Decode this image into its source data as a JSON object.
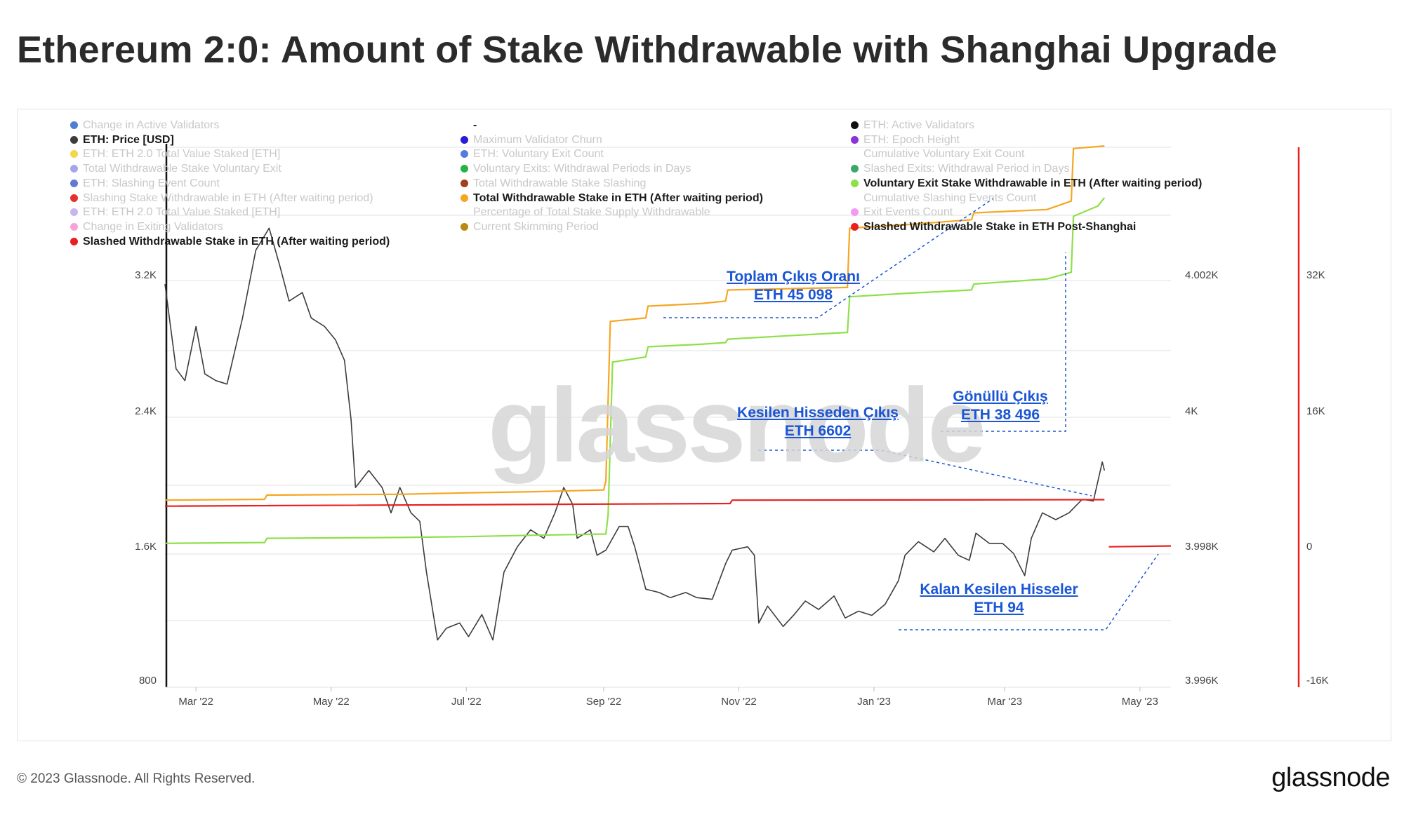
{
  "header": {
    "title": "Ethereum 2:0: Amount of Stake Withdrawable with Shanghai Upgrade"
  },
  "legend": {
    "col1": [
      {
        "label": "Change in Active Validators",
        "color": "#4e7fd0",
        "active": false
      },
      {
        "label": "ETH: Price [USD]",
        "color": "#3c3c3c",
        "active": true
      },
      {
        "label": "ETH: ETH 2.0 Total Value Staked [ETH]",
        "color": "#f1d749",
        "active": false
      },
      {
        "label": "Total Withdrawable Stake Voluntary Exit",
        "color": "#a5a6e8",
        "active": false
      },
      {
        "label": "ETH: Slashing Event Count",
        "color": "#6279d8",
        "active": false
      },
      {
        "label": "Slashing Stake Withdrawable in ETH (After waiting period)",
        "color": "#e63030",
        "active": false
      },
      {
        "label": "ETH: ETH 2.0 Total Value Staked [ETH]",
        "color": "#c7b6ea",
        "active": false
      },
      {
        "label": "Change in Exiting Validators",
        "color": "#f4a6d8",
        "active": false
      },
      {
        "label": "Slashed Withdrawable Stake in ETH (After waiting period)",
        "color": "#e82020",
        "active": true
      }
    ],
    "col2": [
      {
        "label": "-",
        "color": "",
        "active": true
      },
      {
        "label": "Maximum Validator Churn",
        "color": "#2a1bd8",
        "active": false
      },
      {
        "label": "ETH: Voluntary Exit Count",
        "color": "#5a79e0",
        "active": false
      },
      {
        "label": "Voluntary Exits: Withdrawal Periods in Days",
        "color": "#24b347",
        "active": false
      },
      {
        "label": "Total Withdrawable Stake Slashing",
        "color": "#a0401d",
        "active": false
      },
      {
        "label": "Total Withdrawable Stake in ETH (After waiting period)",
        "color": "#f5a623",
        "active": true
      },
      {
        "label": "Percentage of Total Stake Supply Withdrawable",
        "color": "",
        "active": false
      },
      {
        "label": "Current Skimming Period",
        "color": "#b88a10",
        "active": false
      }
    ],
    "col3": [
      {
        "label": "ETH: Active Validators",
        "color": "#111111",
        "active": false
      },
      {
        "label": "ETH: Epoch Height",
        "color": "#8a33d6",
        "active": false
      },
      {
        "label": "Cumulative Voluntary Exit Count",
        "color": "",
        "active": false
      },
      {
        "label": "Slashed Exits: Withdrawal Period in Days",
        "color": "#3aa86a",
        "active": false
      },
      {
        "label": "Voluntary Exit Stake Withdrawable in ETH (After waiting period)",
        "color": "#8ee04a",
        "active": true
      },
      {
        "label": "Cumulative Slashing Events Count",
        "color": "",
        "active": false
      },
      {
        "label": "Exit Events Count",
        "color": "#f29af0",
        "active": false
      },
      {
        "label": "Slashed Withdrawable Stake in ETH Post-Shanghai",
        "color": "#e82020",
        "active": true
      }
    ]
  },
  "annotations": [
    {
      "line1": "Toplam Çıkış Oranı",
      "line2": "ETH 45 098"
    },
    {
      "line1": "Gönüllü Çıkış",
      "line2": "ETH 38 496"
    },
    {
      "line1": "Kesilen Hisseden Çıkış",
      "line2": "ETH 6602"
    },
    {
      "line1": "Kalan Kesilen Hisseler",
      "line2": "ETH 94"
    }
  ],
  "watermark": "glassnode",
  "footer": {
    "copyright": "© 2023 Glassnode. All Rights Reserved.",
    "brand": "glassnode"
  },
  "chart_data": {
    "type": "line",
    "title": "Ethereum 2:0: Amount of Stake Withdrawable with Shanghai Upgrade",
    "x_ticks": [
      "Mar '22",
      "May '22",
      "Jul '22",
      "Sep '22",
      "Nov '22",
      "Jan '23",
      "Mar '23",
      "May '23"
    ],
    "x_range": [
      "2022-02-15",
      "2023-05-15"
    ],
    "axes": {
      "price_left": {
        "ticks": [
          "800",
          "1.6K",
          "2.4K",
          "3.2K"
        ],
        "range": [
          800,
          3220
        ]
      },
      "stake_right": {
        "ticks": [
          "3.996K",
          "3.998K",
          "4K",
          "4.002K"
        ],
        "range": [
          3996,
          4002
        ]
      },
      "count_right": {
        "ticks": [
          "-16K",
          "0",
          "16K",
          "32K"
        ],
        "range": [
          -16000,
          32000
        ]
      }
    },
    "grid": true,
    "legend_position": "top",
    "series": [
      {
        "name": "ETH: Price [USD]",
        "color": "#3c3c3c",
        "axis": "price_left",
        "points": [
          [
            "2022-02-15",
            3150
          ],
          [
            "2022-02-20",
            2650
          ],
          [
            "2022-02-24",
            2580
          ],
          [
            "2022-03-01",
            2900
          ],
          [
            "2022-03-05",
            2620
          ],
          [
            "2022-03-10",
            2580
          ],
          [
            "2022-03-15",
            2560
          ],
          [
            "2022-03-22",
            2950
          ],
          [
            "2022-03-28",
            3350
          ],
          [
            "2022-04-03",
            3480
          ],
          [
            "2022-04-08",
            3250
          ],
          [
            "2022-04-12",
            3050
          ],
          [
            "2022-04-18",
            3100
          ],
          [
            "2022-04-22",
            2950
          ],
          [
            "2022-04-28",
            2900
          ],
          [
            "2022-05-03",
            2820
          ],
          [
            "2022-05-07",
            2700
          ],
          [
            "2022-05-10",
            2350
          ],
          [
            "2022-05-12",
            1950
          ],
          [
            "2022-05-18",
            2050
          ],
          [
            "2022-05-24",
            1950
          ],
          [
            "2022-05-28",
            1800
          ],
          [
            "2022-06-01",
            1950
          ],
          [
            "2022-06-06",
            1800
          ],
          [
            "2022-06-10",
            1750
          ],
          [
            "2022-06-13",
            1450
          ],
          [
            "2022-06-18",
            1050
          ],
          [
            "2022-06-22",
            1120
          ],
          [
            "2022-06-28",
            1150
          ],
          [
            "2022-07-02",
            1070
          ],
          [
            "2022-07-08",
            1200
          ],
          [
            "2022-07-13",
            1050
          ],
          [
            "2022-07-18",
            1450
          ],
          [
            "2022-07-24",
            1600
          ],
          [
            "2022-07-30",
            1700
          ],
          [
            "2022-08-05",
            1650
          ],
          [
            "2022-08-10",
            1800
          ],
          [
            "2022-08-14",
            1950
          ],
          [
            "2022-08-18",
            1850
          ],
          [
            "2022-08-20",
            1650
          ],
          [
            "2022-08-26",
            1700
          ],
          [
            "2022-08-29",
            1550
          ],
          [
            "2022-09-02",
            1580
          ],
          [
            "2022-09-08",
            1720
          ],
          [
            "2022-09-12",
            1720
          ],
          [
            "2022-09-15",
            1600
          ],
          [
            "2022-09-20",
            1350
          ],
          [
            "2022-09-26",
            1330
          ],
          [
            "2022-10-01",
            1300
          ],
          [
            "2022-10-08",
            1330
          ],
          [
            "2022-10-13",
            1300
          ],
          [
            "2022-10-20",
            1290
          ],
          [
            "2022-10-26",
            1500
          ],
          [
            "2022-10-29",
            1580
          ],
          [
            "2022-11-05",
            1600
          ],
          [
            "2022-11-08",
            1550
          ],
          [
            "2022-11-10",
            1150
          ],
          [
            "2022-11-14",
            1250
          ],
          [
            "2022-11-21",
            1130
          ],
          [
            "2022-11-26",
            1200
          ],
          [
            "2022-12-01",
            1280
          ],
          [
            "2022-12-07",
            1230
          ],
          [
            "2022-12-14",
            1310
          ],
          [
            "2022-12-19",
            1180
          ],
          [
            "2022-12-25",
            1220
          ],
          [
            "2022-12-31",
            1195
          ],
          [
            "2023-01-06",
            1260
          ],
          [
            "2023-01-12",
            1400
          ],
          [
            "2023-01-15",
            1550
          ],
          [
            "2023-01-21",
            1630
          ],
          [
            "2023-01-28",
            1570
          ],
          [
            "2023-02-02",
            1650
          ],
          [
            "2023-02-08",
            1550
          ],
          [
            "2023-02-13",
            1520
          ],
          [
            "2023-02-16",
            1680
          ],
          [
            "2023-02-22",
            1620
          ],
          [
            "2023-02-28",
            1620
          ],
          [
            "2023-03-05",
            1560
          ],
          [
            "2023-03-10",
            1430
          ],
          [
            "2023-03-13",
            1650
          ],
          [
            "2023-03-18",
            1800
          ],
          [
            "2023-03-24",
            1760
          ],
          [
            "2023-03-30",
            1800
          ],
          [
            "2023-04-05",
            1880
          ],
          [
            "2023-04-10",
            1870
          ],
          [
            "2023-04-14",
            2100
          ],
          [
            "2023-04-15",
            2050
          ]
        ]
      },
      {
        "name": "Total Withdrawable Stake in ETH (After waiting period)",
        "color": "#f5a623",
        "axis": "price_left",
        "points": [
          [
            "2022-02-15",
            1875
          ],
          [
            "2022-04-01",
            1880
          ],
          [
            "2022-04-02",
            1905
          ],
          [
            "2022-06-01",
            1910
          ],
          [
            "2022-07-01",
            1918
          ],
          [
            "2022-08-01",
            1925
          ],
          [
            "2022-09-01",
            1935
          ],
          [
            "2022-09-02",
            1990
          ],
          [
            "2022-09-04",
            2930
          ],
          [
            "2022-09-20",
            2950
          ],
          [
            "2022-09-21",
            3020
          ],
          [
            "2022-10-15",
            3035
          ],
          [
            "2022-10-26",
            3050
          ],
          [
            "2022-10-27",
            3115
          ],
          [
            "2022-12-20",
            3130
          ],
          [
            "2022-12-21",
            3480
          ],
          [
            "2023-01-15",
            3500
          ],
          [
            "2023-02-14",
            3530
          ],
          [
            "2023-02-15",
            3570
          ],
          [
            "2023-03-20",
            3590
          ],
          [
            "2023-03-31",
            3640
          ],
          [
            "2023-04-01",
            3950
          ],
          [
            "2023-04-15",
            3965
          ]
        ]
      },
      {
        "name": "Voluntary Exit Stake Withdrawable in ETH (After waiting period)",
        "color": "#8ee04a",
        "axis": "price_left",
        "points": [
          [
            "2022-02-15",
            1620
          ],
          [
            "2022-04-01",
            1625
          ],
          [
            "2022-04-02",
            1650
          ],
          [
            "2022-06-01",
            1655
          ],
          [
            "2022-07-01",
            1660
          ],
          [
            "2022-08-01",
            1668
          ],
          [
            "2022-09-02",
            1675
          ],
          [
            "2022-09-03",
            1790
          ],
          [
            "2022-09-05",
            2690
          ],
          [
            "2022-09-20",
            2720
          ],
          [
            "2022-09-21",
            2780
          ],
          [
            "2022-10-15",
            2795
          ],
          [
            "2022-10-26",
            2805
          ],
          [
            "2022-10-27",
            2825
          ],
          [
            "2022-12-20",
            2865
          ],
          [
            "2022-12-21",
            3075
          ],
          [
            "2023-01-15",
            3095
          ],
          [
            "2023-02-14",
            3115
          ],
          [
            "2023-02-15",
            3150
          ],
          [
            "2023-03-20",
            3180
          ],
          [
            "2023-03-31",
            3220
          ],
          [
            "2023-04-01",
            3550
          ],
          [
            "2023-04-12",
            3610
          ],
          [
            "2023-04-15",
            3660
          ]
        ]
      },
      {
        "name": "Slashed Withdrawable Stake in ETH (After waiting period)",
        "color": "#e82020",
        "axis": "price_left",
        "points": [
          [
            "2022-02-15",
            1840
          ],
          [
            "2022-10-28",
            1855
          ],
          [
            "2022-10-29",
            1875
          ],
          [
            "2023-04-15",
            1878
          ]
        ]
      },
      {
        "name": "Slashed Withdrawable Stake in ETH Post-Shanghai",
        "color": "#e82020",
        "axis": "price_left",
        "points": [
          [
            "2023-04-17",
            1600
          ],
          [
            "2023-05-15",
            1605
          ]
        ]
      }
    ]
  }
}
